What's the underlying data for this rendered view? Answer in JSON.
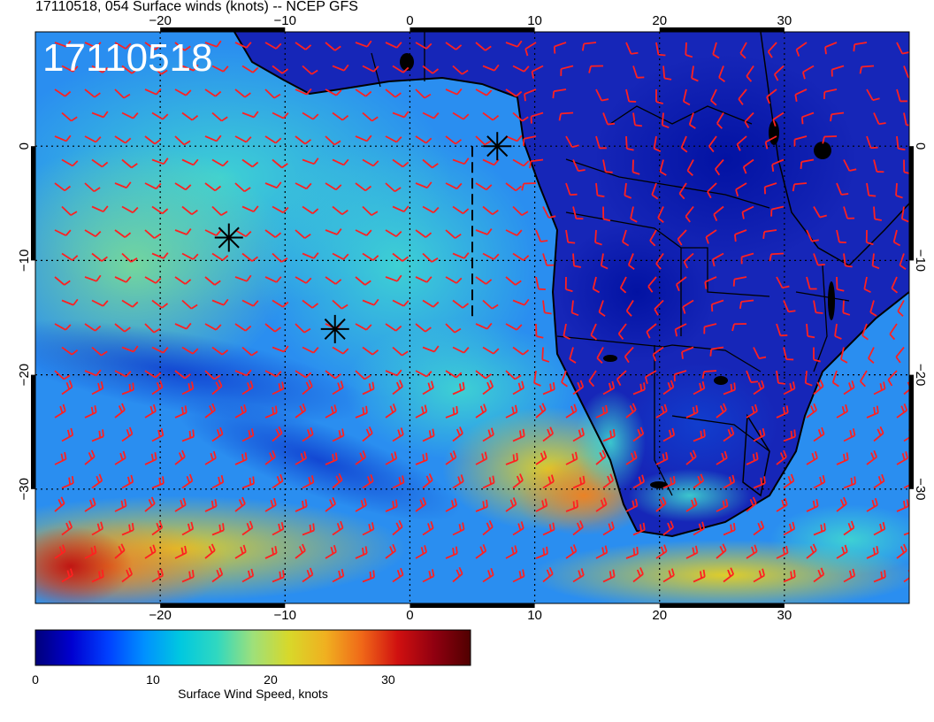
{
  "header": {
    "title": "17110518, 054 Surface winds (knots) -- NCEP GFS"
  },
  "map": {
    "time_stamp": "17110518",
    "lon_range": [
      -30,
      40
    ],
    "lat_range": [
      -40,
      10
    ],
    "lon_ticks": [
      -20,
      -10,
      0,
      10,
      20,
      30
    ],
    "lat_ticks": [
      0,
      -10,
      -20,
      -30
    ],
    "lon_tick_labels": [
      "−20",
      "−10",
      "0",
      "10",
      "20",
      "30"
    ],
    "lat_tick_labels": [
      "0",
      "−10",
      "−20",
      "−30"
    ],
    "wind_barb_color": "#ff2020",
    "coastline_color": "#000000",
    "markers": [
      {
        "name": "marker-1",
        "lon": 7.0,
        "lat": 0.0
      },
      {
        "name": "marker-2",
        "lon": -14.5,
        "lat": -8.0
      },
      {
        "name": "marker-3",
        "lon": -6.0,
        "lat": -16.0
      }
    ],
    "dashed_line": {
      "lon": 5.0,
      "lat_from": 0.0,
      "lat_to": -15.0
    }
  },
  "colorbar": {
    "label": "Surface Wind Speed, knots",
    "range": [
      0,
      37
    ],
    "ticks": [
      0,
      10,
      20,
      30
    ],
    "tick_labels": [
      "0",
      "10",
      "20",
      "30"
    ],
    "colors": [
      "#00007a",
      "#0000d0",
      "#0040ff",
      "#0090ff",
      "#00c8e0",
      "#30d8c0",
      "#9ee07a",
      "#d8d82a",
      "#f0b020",
      "#f06818",
      "#d01010",
      "#900010",
      "#500000"
    ]
  }
}
